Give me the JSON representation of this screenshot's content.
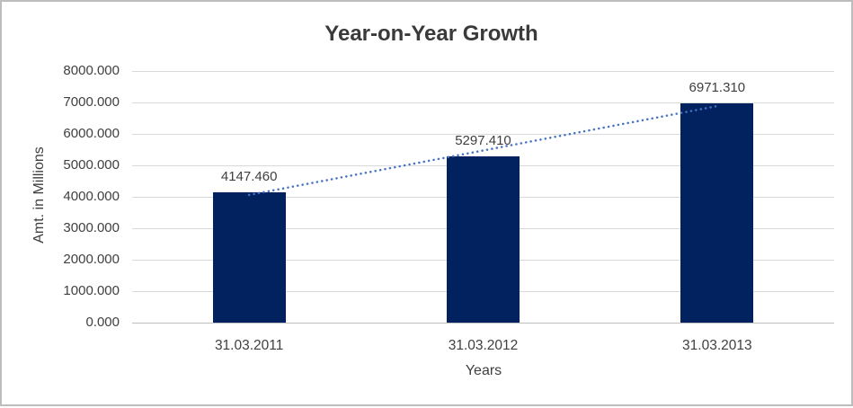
{
  "chart_data": {
    "type": "bar",
    "title": "Year-on-Year Growth",
    "categories": [
      "31.03.2011",
      "31.03.2012",
      "31.03.2013"
    ],
    "values": [
      4147.46,
      5297.41,
      6971.31
    ],
    "data_labels": [
      "4147.460",
      "5297.410",
      "6971.310"
    ],
    "xlabel": "Years",
    "ylabel": "Amt. in Millions",
    "ylim": [
      0,
      8000
    ],
    "ytick_labels": [
      "0.000",
      "1000.000",
      "2000.000",
      "3000.000",
      "4000.000",
      "5000.000",
      "6000.000",
      "7000.000",
      "8000.000"
    ],
    "grid": true,
    "legend": "none",
    "trendline": {
      "type": "linear",
      "style": "dotted",
      "color": "#4472C4"
    },
    "colors": {
      "bar": "#02215F",
      "gridline": "#D9D9D9",
      "axis_line": "#BFBFBF",
      "text": "#404040",
      "title": "#3A3A3A",
      "border": "#BDBDBD",
      "background": "#FFFFFF"
    }
  }
}
